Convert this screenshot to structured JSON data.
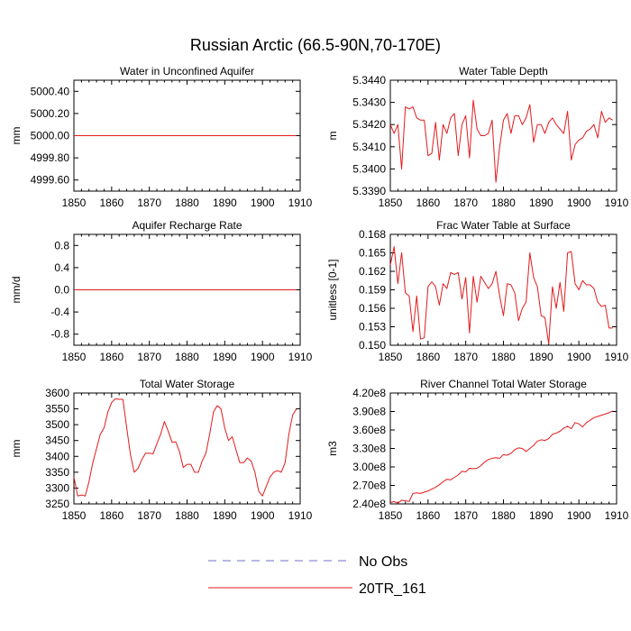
{
  "figure": {
    "title": "Russian Arctic (66.5-90N,70-170E)"
  },
  "legend": {
    "entries": [
      {
        "label": "No Obs",
        "color": "#6f6fc8",
        "dashed": true
      },
      {
        "label": "20TR_161",
        "color": "#e31a1c",
        "dashed": false
      }
    ]
  },
  "chart_data": [
    {
      "type": "line",
      "title": "Water in Unconfined Aquifer",
      "xlabel": "",
      "ylabel": "mm",
      "xlim": [
        1850,
        1910
      ],
      "ylim": [
        4999.5,
        5000.5
      ],
      "xticks": [
        1850,
        1860,
        1870,
        1880,
        1890,
        1900,
        1910
      ],
      "xtick_labels": [
        "1850",
        "1860",
        "1870",
        "1880",
        "1890",
        "1900",
        "1910"
      ],
      "yticks": [
        4999.6,
        4999.8,
        5000.0,
        5000.2,
        5000.4
      ],
      "ytick_labels": [
        "4999.60",
        "4999.80",
        "5000.00",
        "5000.20",
        "5000.40"
      ],
      "series": [
        {
          "name": "20TR_161",
          "color": "#e31a1c",
          "x": [
            1850,
            1909
          ],
          "y": [
            5000.0,
            5000.0
          ]
        }
      ]
    },
    {
      "type": "line",
      "title": "Water Table Depth",
      "xlabel": "",
      "ylabel": "m",
      "xlim": [
        1850,
        1910
      ],
      "ylim": [
        5.339,
        5.344
      ],
      "xticks": [
        1850,
        1860,
        1870,
        1880,
        1890,
        1900,
        1910
      ],
      "xtick_labels": [
        "1850",
        "1860",
        "1870",
        "1880",
        "1890",
        "1900",
        "1910"
      ],
      "yticks": [
        5.339,
        5.34,
        5.341,
        5.342,
        5.343,
        5.344
      ],
      "ytick_labels": [
        "5.3390",
        "5.3400",
        "5.3410",
        "5.3420",
        "5.3430",
        "5.3440"
      ],
      "series": [
        {
          "name": "20TR_161",
          "color": "#e31a1c",
          "x": [
            1850,
            1851,
            1852,
            1853,
            1854,
            1855,
            1856,
            1857,
            1858,
            1859,
            1860,
            1861,
            1862,
            1863,
            1864,
            1865,
            1866,
            1867,
            1868,
            1869,
            1870,
            1871,
            1872,
            1873,
            1874,
            1875,
            1876,
            1877,
            1878,
            1879,
            1880,
            1881,
            1882,
            1883,
            1884,
            1885,
            1886,
            1887,
            1888,
            1889,
            1890,
            1891,
            1892,
            1893,
            1894,
            1895,
            1896,
            1897,
            1898,
            1899,
            1900,
            1901,
            1902,
            1903,
            1904,
            1905,
            1906,
            1907,
            1908,
            1909
          ],
          "y": [
            5.342,
            5.3416,
            5.342,
            5.34,
            5.3428,
            5.3427,
            5.3428,
            5.3423,
            5.3422,
            5.3422,
            5.3406,
            5.3407,
            5.3421,
            5.3404,
            5.342,
            5.3416,
            5.3423,
            5.3425,
            5.3406,
            5.342,
            5.3424,
            5.3405,
            5.3431,
            5.3418,
            5.3415,
            5.3415,
            5.3416,
            5.3422,
            5.3394,
            5.341,
            5.3422,
            5.3425,
            5.3416,
            5.3424,
            5.3424,
            5.342,
            5.3423,
            5.3429,
            5.3412,
            5.342,
            5.342,
            5.3416,
            5.3421,
            5.3423,
            5.342,
            5.3418,
            5.3416,
            5.3426,
            5.3404,
            5.3411,
            5.3413,
            5.3414,
            5.3417,
            5.3418,
            5.342,
            5.3414,
            5.3426,
            5.3421,
            5.3423,
            5.3422
          ]
        }
      ]
    },
    {
      "type": "line",
      "title": "Aquifer Recharge Rate",
      "xlabel": "",
      "ylabel": "mm/d",
      "xlim": [
        1850,
        1910
      ],
      "ylim": [
        -1.0,
        1.0
      ],
      "xticks": [
        1850,
        1860,
        1870,
        1880,
        1890,
        1900,
        1910
      ],
      "xtick_labels": [
        "1850",
        "1860",
        "1870",
        "1880",
        "1890",
        "1900",
        "1910"
      ],
      "yticks": [
        -0.8,
        -0.4,
        0.0,
        0.4,
        0.8
      ],
      "ytick_labels": [
        "-0.8",
        "-0.4",
        "0.0",
        "0.4",
        "0.8"
      ],
      "series": [
        {
          "name": "20TR_161",
          "color": "#e31a1c",
          "x": [
            1850,
            1909
          ],
          "y": [
            0.0,
            0.0
          ]
        }
      ]
    },
    {
      "type": "line",
      "title": "Frac Water Table at Surface",
      "xlabel": "",
      "ylabel": "unitless [0-1]",
      "xlim": [
        1850,
        1910
      ],
      "ylim": [
        0.15,
        0.168
      ],
      "xticks": [
        1850,
        1860,
        1870,
        1880,
        1890,
        1900,
        1910
      ],
      "xtick_labels": [
        "1850",
        "1860",
        "1870",
        "1880",
        "1890",
        "1900",
        "1910"
      ],
      "yticks": [
        0.15,
        0.153,
        0.156,
        0.159,
        0.162,
        0.165,
        0.168
      ],
      "ytick_labels": [
        "0.150",
        "0.153",
        "0.156",
        "0.159",
        "0.162",
        "0.165",
        "0.168"
      ],
      "series": [
        {
          "name": "20TR_161",
          "color": "#e31a1c",
          "x": [
            1850,
            1851,
            1852,
            1853,
            1854,
            1855,
            1856,
            1857,
            1858,
            1859,
            1860,
            1861,
            1862,
            1863,
            1864,
            1865,
            1866,
            1867,
            1868,
            1869,
            1870,
            1871,
            1872,
            1873,
            1874,
            1875,
            1876,
            1877,
            1878,
            1879,
            1880,
            1881,
            1882,
            1883,
            1884,
            1885,
            1886,
            1887,
            1888,
            1889,
            1890,
            1891,
            1892,
            1893,
            1894,
            1895,
            1896,
            1897,
            1898,
            1899,
            1900,
            1901,
            1902,
            1903,
            1904,
            1905,
            1906,
            1907,
            1908,
            1909
          ],
          "y": [
            0.163,
            0.166,
            0.16,
            0.165,
            0.1585,
            0.158,
            0.1522,
            0.158,
            0.151,
            0.1512,
            0.1595,
            0.1603,
            0.1595,
            0.1565,
            0.16,
            0.1592,
            0.1618,
            0.1615,
            0.1618,
            0.1575,
            0.161,
            0.152,
            0.1612,
            0.157,
            0.1612,
            0.1602,
            0.1592,
            0.16,
            0.162,
            0.158,
            0.1548,
            0.16,
            0.1598,
            0.1585,
            0.154,
            0.156,
            0.157,
            0.165,
            0.161,
            0.1595,
            0.1548,
            0.1545,
            0.1502,
            0.1595,
            0.156,
            0.1602,
            0.1555,
            0.165,
            0.1652,
            0.16,
            0.159,
            0.1605,
            0.1598,
            0.1598,
            0.1592,
            0.157,
            0.1563,
            0.1565,
            0.1528,
            0.1528
          ]
        }
      ]
    },
    {
      "type": "line",
      "title": "Total Water Storage",
      "xlabel": "",
      "ylabel": "mm",
      "xlim": [
        1850,
        1910
      ],
      "ylim": [
        3250,
        3600
      ],
      "xticks": [
        1850,
        1860,
        1870,
        1880,
        1890,
        1900,
        1910
      ],
      "xtick_labels": [
        "1850",
        "1860",
        "1870",
        "1880",
        "1890",
        "1900",
        "1910"
      ],
      "yticks": [
        3250,
        3300,
        3350,
        3400,
        3450,
        3500,
        3550,
        3600
      ],
      "ytick_labels": [
        "3250",
        "3300",
        "3350",
        "3400",
        "3450",
        "3500",
        "3550",
        "3600"
      ],
      "series": [
        {
          "name": "20TR_161",
          "color": "#e31a1c",
          "x": [
            1850,
            1851,
            1852,
            1853,
            1854,
            1855,
            1856,
            1857,
            1858,
            1859,
            1860,
            1861,
            1862,
            1863,
            1864,
            1865,
            1866,
            1867,
            1868,
            1869,
            1870,
            1871,
            1872,
            1873,
            1874,
            1875,
            1876,
            1877,
            1878,
            1879,
            1880,
            1881,
            1882,
            1883,
            1884,
            1885,
            1886,
            1887,
            1888,
            1889,
            1890,
            1891,
            1892,
            1893,
            1894,
            1895,
            1896,
            1897,
            1898,
            1899,
            1900,
            1901,
            1902,
            1903,
            1904,
            1905,
            1906,
            1907,
            1908,
            1909
          ],
          "y": [
            3335,
            3275,
            3278,
            3275,
            3320,
            3380,
            3425,
            3470,
            3490,
            3540,
            3570,
            3582,
            3580,
            3580,
            3490,
            3405,
            3350,
            3362,
            3390,
            3410,
            3410,
            3408,
            3440,
            3470,
            3510,
            3480,
            3445,
            3446,
            3415,
            3365,
            3375,
            3375,
            3350,
            3350,
            3385,
            3410,
            3470,
            3540,
            3560,
            3550,
            3490,
            3450,
            3462,
            3420,
            3380,
            3380,
            3395,
            3385,
            3350,
            3290,
            3275,
            3305,
            3335,
            3350,
            3355,
            3350,
            3380,
            3470,
            3530,
            3550
          ]
        }
      ]
    },
    {
      "type": "line",
      "title": "River Channel Total Water Storage",
      "xlabel": "",
      "ylabel": "m3",
      "xlim": [
        1850,
        1910
      ],
      "ylim": [
        240000000.0,
        420000000.0
      ],
      "xticks": [
        1850,
        1860,
        1870,
        1880,
        1890,
        1900,
        1910
      ],
      "xtick_labels": [
        "1850",
        "1860",
        "1870",
        "1880",
        "1890",
        "1900",
        "1910"
      ],
      "yticks": [
        240000000.0,
        270000000.0,
        300000000.0,
        330000000.0,
        360000000.0,
        390000000.0,
        420000000.0
      ],
      "ytick_labels": [
        "2.40e8",
        "2.70e8",
        "3.00e8",
        "3.30e8",
        "3.60e8",
        "3.90e8",
        "4.20e8"
      ],
      "series": [
        {
          "name": "20TR_161",
          "color": "#e31a1c",
          "x": [
            1850,
            1851,
            1852,
            1853,
            1854,
            1855,
            1856,
            1857,
            1858,
            1859,
            1860,
            1861,
            1862,
            1863,
            1864,
            1865,
            1866,
            1867,
            1868,
            1869,
            1870,
            1871,
            1872,
            1873,
            1874,
            1875,
            1876,
            1877,
            1878,
            1879,
            1880,
            1881,
            1882,
            1883,
            1884,
            1885,
            1886,
            1887,
            1888,
            1889,
            1890,
            1891,
            1892,
            1893,
            1894,
            1895,
            1896,
            1897,
            1898,
            1899,
            1900,
            1901,
            1902,
            1903,
            1904,
            1905,
            1906,
            1907,
            1908,
            1909
          ],
          "y": [
            242000000.0,
            244000000.0,
            241000000.0,
            246000000.0,
            245000000.0,
            244000000.0,
            257000000.0,
            258000000.0,
            257000000.0,
            259000000.0,
            261000000.0,
            264000000.0,
            267000000.0,
            271000000.0,
            276000000.0,
            280000000.0,
            279000000.0,
            283000000.0,
            287000000.0,
            293000000.0,
            292000000.0,
            298000000.0,
            297000000.0,
            298000000.0,
            302000000.0,
            308000000.0,
            312000000.0,
            314000000.0,
            315000000.0,
            314000000.0,
            320000000.0,
            319000000.0,
            322000000.0,
            328000000.0,
            331000000.0,
            330000000.0,
            325000000.0,
            330000000.0,
            335000000.0,
            342000000.0,
            344000000.0,
            343000000.0,
            346000000.0,
            353000000.0,
            355000000.0,
            358000000.0,
            363000000.0,
            366000000.0,
            362000000.0,
            372000000.0,
            370000000.0,
            365000000.0,
            372000000.0,
            376000000.0,
            380000000.0,
            382000000.0,
            384000000.0,
            386000000.0,
            388000000.0,
            391000000.0
          ]
        }
      ]
    }
  ]
}
